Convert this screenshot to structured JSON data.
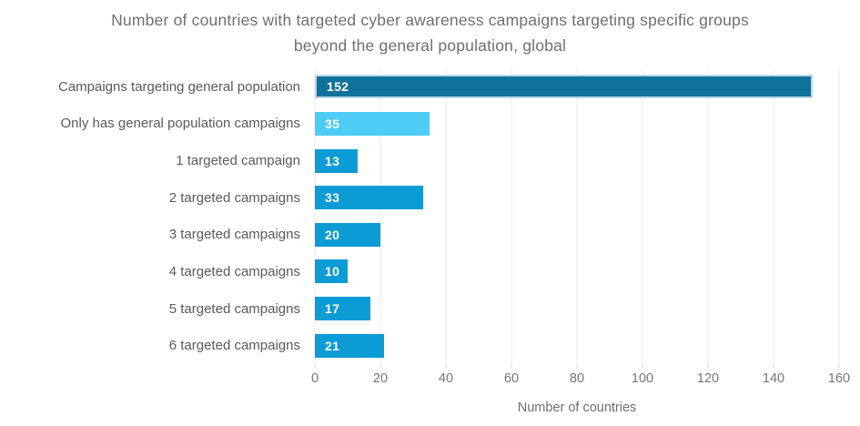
{
  "title": "Number of countries with targeted cyber awareness campaigns targeting specific groups beyond the general population, global",
  "chart_data": {
    "type": "bar",
    "orientation": "horizontal",
    "categories": [
      "Campaigns targeting general population",
      "Only has general population campaigns",
      "1 targeted campaign",
      "2 targeted campaigns",
      "3 targeted campaigns",
      "4 targeted campaigns",
      "5 targeted campaigns",
      "6 targeted campaigns"
    ],
    "values": [
      152,
      35,
      13,
      33,
      20,
      10,
      17,
      21
    ],
    "value_labels": [
      "152",
      "35",
      "13",
      "33",
      "20",
      "10",
      "17",
      "21"
    ],
    "xlabel": "Number of countries",
    "xticks": [
      0,
      20,
      40,
      60,
      80,
      100,
      120,
      140,
      160
    ],
    "xlim": [
      0,
      160
    ],
    "grid": "vertical",
    "legend": "none",
    "bar_colors": [
      "#10719A",
      "#4DCDF5",
      "#0B9BD5",
      "#0B9BD5",
      "#0B9BD5",
      "#0B9BD5",
      "#0B9BD5",
      "#0B9BD5"
    ],
    "highlight": {
      "index": 0,
      "border_color": "#BAD8EA"
    },
    "value_label_color": "#FFFFFF"
  },
  "colors": {
    "title_text": "#6F6F6F",
    "category_text": "#5A5A5A",
    "tick_text": "#767676",
    "gridline": "#EBEBEB",
    "background": "#FFFFFF"
  }
}
